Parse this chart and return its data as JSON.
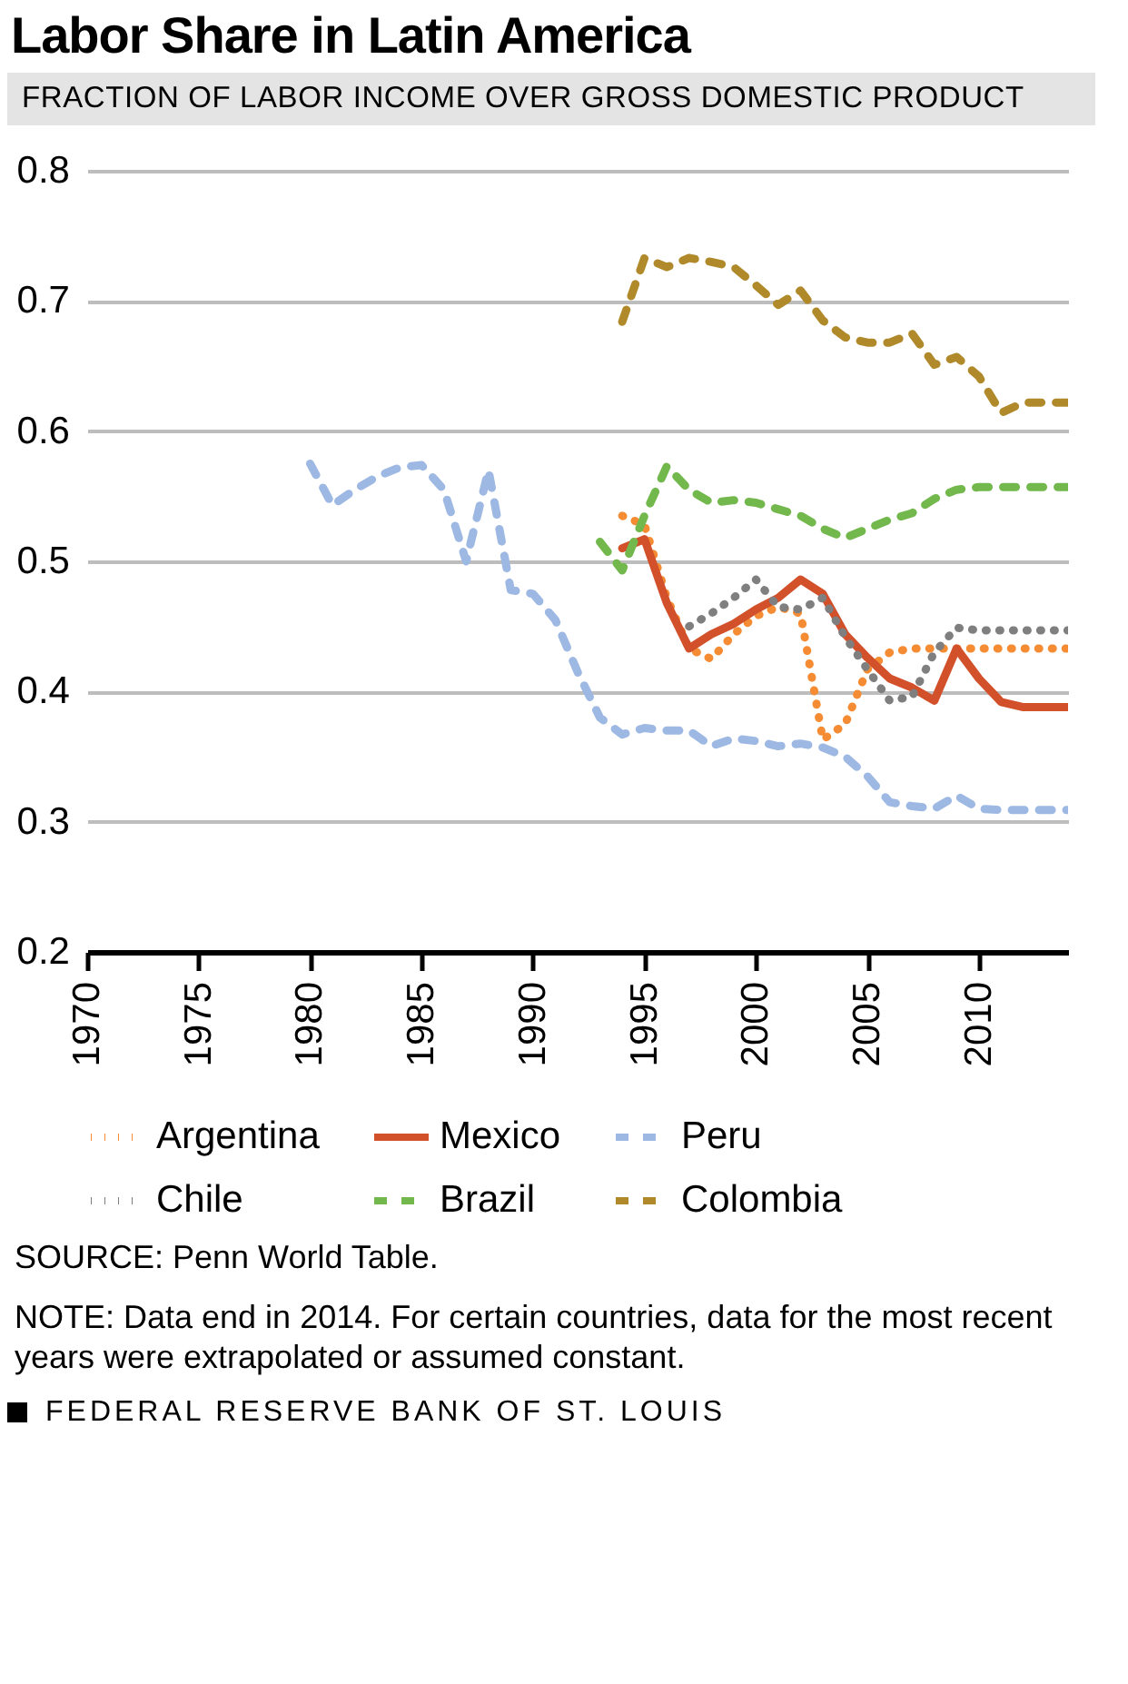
{
  "chart_data": {
    "type": "line",
    "title": "Labor Share in Latin America",
    "subtitle": "FRACTION OF LABOR INCOME OVER GROSS DOMESTIC PRODUCT",
    "xlim": [
      1970,
      2014
    ],
    "xticks": [
      1970,
      1975,
      1980,
      1985,
      1990,
      1995,
      2000,
      2005,
      2010
    ],
    "ylim": [
      0.2,
      0.8
    ],
    "yticks": [
      0.2,
      0.3,
      0.4,
      0.5,
      0.6,
      0.7,
      0.8
    ],
    "grid": "y",
    "legend": "bottom",
    "series": [
      {
        "name": "Argentina",
        "color": "#f58c34",
        "line_style": "dotted",
        "x": [
          1994,
          1995,
          1996,
          1997,
          1998,
          1999,
          2000,
          2001,
          2002,
          2003,
          2004,
          2005,
          2006,
          2007,
          2008,
          2009,
          2010,
          2011,
          2012,
          2013,
          2014
        ],
        "values": [
          0.535,
          0.528,
          0.472,
          0.433,
          0.425,
          0.444,
          0.458,
          0.465,
          0.46,
          0.363,
          0.375,
          0.417,
          0.43,
          0.433,
          0.433,
          0.433,
          0.433,
          0.433,
          0.433,
          0.433,
          0.433
        ]
      },
      {
        "name": "Mexico",
        "color": "#d2502a",
        "line_style": "solid",
        "x": [
          1994,
          1995,
          1996,
          1997,
          1998,
          1999,
          2000,
          2001,
          2002,
          2003,
          2004,
          2005,
          2006,
          2007,
          2008,
          2009,
          2010,
          2011,
          2012,
          2013,
          2014
        ],
        "values": [
          0.51,
          0.517,
          0.468,
          0.433,
          0.444,
          0.452,
          0.463,
          0.472,
          0.486,
          0.475,
          0.444,
          0.426,
          0.41,
          0.403,
          0.393,
          0.433,
          0.41,
          0.392,
          0.388,
          0.388,
          0.388
        ]
      },
      {
        "name": "Peru",
        "color": "#9db8e3",
        "line_style": "dashed",
        "x": [
          1980,
          1981,
          1982,
          1983,
          1984,
          1985,
          1986,
          1987,
          1988,
          1989,
          1990,
          1991,
          1992,
          1993,
          1994,
          1995,
          1996,
          1997,
          1998,
          1999,
          2000,
          2001,
          2002,
          2003,
          2004,
          2005,
          2006,
          2007,
          2008,
          2009,
          2010,
          2011,
          2012,
          2013,
          2014
        ],
        "values": [
          0.575,
          0.543,
          0.555,
          0.565,
          0.572,
          0.574,
          0.555,
          0.5,
          0.57,
          0.478,
          0.475,
          0.455,
          0.415,
          0.38,
          0.367,
          0.372,
          0.37,
          0.37,
          0.358,
          0.364,
          0.362,
          0.358,
          0.36,
          0.357,
          0.35,
          0.335,
          0.315,
          0.312,
          0.31,
          0.32,
          0.31,
          0.309,
          0.309,
          0.309,
          0.309
        ]
      },
      {
        "name": "Chile",
        "color": "#7f7f7f",
        "line_style": "dotted",
        "x": [
          1997,
          1998,
          1999,
          2000,
          2001,
          2002,
          2003,
          2004,
          2005,
          2006,
          2007,
          2008,
          2009,
          2010,
          2011,
          2012,
          2013,
          2014
        ],
        "values": [
          0.45,
          0.46,
          0.472,
          0.486,
          0.465,
          0.463,
          0.472,
          0.442,
          0.417,
          0.393,
          0.396,
          0.43,
          0.449,
          0.447,
          0.447,
          0.447,
          0.447,
          0.447
        ]
      },
      {
        "name": "Brazil",
        "color": "#72b84c",
        "line_style": "dashed",
        "x": [
          1993,
          1994,
          1995,
          1996,
          1997,
          1998,
          1999,
          2000,
          2001,
          2002,
          2003,
          2004,
          2005,
          2006,
          2007,
          2008,
          2009,
          2010,
          2011,
          2012,
          2013,
          2014
        ],
        "values": [
          0.515,
          0.493,
          0.535,
          0.573,
          0.555,
          0.545,
          0.547,
          0.545,
          0.54,
          0.535,
          0.525,
          0.518,
          0.525,
          0.532,
          0.537,
          0.548,
          0.555,
          0.557,
          0.557,
          0.557,
          0.557,
          0.557
        ]
      },
      {
        "name": "Colombia",
        "color": "#b08a2a",
        "line_style": "dashed",
        "x": [
          1994,
          1995,
          1996,
          1997,
          1998,
          1999,
          2000,
          2001,
          2002,
          2003,
          2004,
          2005,
          2006,
          2007,
          2008,
          2009,
          2010,
          2011,
          2012,
          2013,
          2014
        ],
        "values": [
          0.684,
          0.733,
          0.726,
          0.733,
          0.73,
          0.726,
          0.712,
          0.697,
          0.708,
          0.685,
          0.672,
          0.668,
          0.668,
          0.675,
          0.651,
          0.657,
          0.642,
          0.614,
          0.622,
          0.622,
          0.622
        ]
      }
    ],
    "annotations": [
      "SOURCE: Penn World Table.",
      "NOTE: Data end in 2014. For certain countries, data for the most recent years were extrapolated or assumed constant.",
      "FEDERAL RESERVE BANK OF ST. LOUIS"
    ]
  }
}
